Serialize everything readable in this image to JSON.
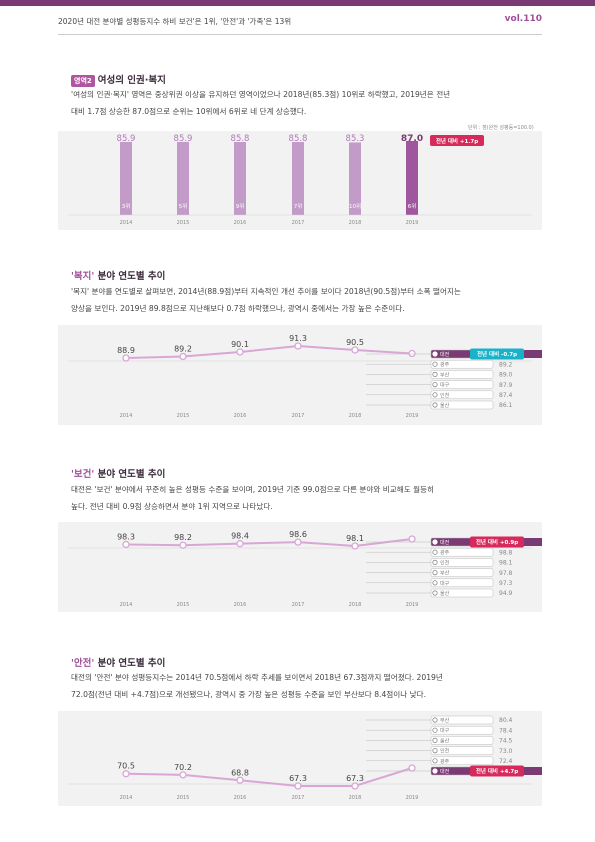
{
  "header": {
    "title": "2020년 대전 분야별 성평등지수 하비 보건'은 1위, '안전'과 '가족'은 13위",
    "vol": "vol.110"
  },
  "section1": {
    "badge": "영역2",
    "title": "여성의 인권·복지",
    "para_line1": "'여성의 인권·복지' 영역은 중상위권 이상을 유지하던 영역이었으나 2018년(85.3점) 10위로 하락했고, 2019년은 전년",
    "para_line2": "대비 1.7점 상승한 87.0점으로 순위는 10위에서 6위로 네 단계 상승했다.",
    "unit": "단위 : 점(완전 성평등=100.0)"
  },
  "section2": {
    "title_q": "'복지'",
    "title_rest": " 분야 연도별 추이",
    "para_line1": "'복지' 분야를 연도별로 살펴보면, 2014년(88.9점)부터 지속적인 개선 추이를 보이다 2018년(90.5점)부터 소폭 떨어지는",
    "para_line2": "양상을 보인다. 2019년 89.8점으로 지난해보다 0.7점 하락했으나, 광역시 중에서는 가장 높은 수준이다."
  },
  "section3": {
    "title_q": "'보건'",
    "title_rest": " 분야 연도별 추이",
    "para_line1": "대전은 '보건' 분야에서 꾸준히 높은 성평등 수준을 보이며, 2019년 기준 99.0점으로 다른 분야와 비교해도 월등히",
    "para_line2": "높다. 전년 대비 0.9점 상승하면서 분야 1위 지역으로 나타났다."
  },
  "section4": {
    "title_q": "'안전'",
    "title_rest": " 분야 연도별 추이",
    "para_line1": "대전의 '안전' 분야 성평등지수는 2014년 70.5점에서 하락 추세를 보이면서 2018년 67.3점까지 떨어졌다. 2019년",
    "para_line2": "72.0점(전년 대비 +4.7점)으로 개선됐으나, 광역시 중 가장 높은 성평등 수준을 보인 부산보다 8.4점이나 낮다."
  },
  "chart_data": [
    {
      "type": "bar",
      "categories": [
        "2014",
        "2015",
        "2016",
        "2017",
        "2018",
        "2019"
      ],
      "values": [
        85.9,
        85.9,
        85.8,
        85.8,
        85.3,
        87.0
      ],
      "value_labels": [
        "85.9",
        "85.9",
        "85.8",
        "85.8",
        "85.3",
        "87.0"
      ],
      "rank_labels": [
        "3위",
        "5위",
        "9위",
        "7위",
        "10위",
        "6위"
      ],
      "change_label": "전년 대비 +1.7p",
      "colors": {
        "bar": "#c39bc8",
        "bar_last": "#a0569e",
        "label": "#b07aba",
        "label_last": "#7a3a74",
        "badge": "#d62a5c"
      }
    },
    {
      "type": "line",
      "x": [
        "2014",
        "2015",
        "2016",
        "2017",
        "2018",
        "2019"
      ],
      "values": [
        88.9,
        89.2,
        90.1,
        91.3,
        90.5,
        89.8
      ],
      "value_labels": [
        "88.9",
        "89.2",
        "90.1",
        "91.3",
        "90.5",
        "89.8"
      ],
      "regions": [
        {
          "name": "대전",
          "value": "89.8",
          "highlight": true
        },
        {
          "name": "광주",
          "value": "89.2"
        },
        {
          "name": "부산",
          "value": "89.0"
        },
        {
          "name": "대구",
          "value": "87.9"
        },
        {
          "name": "인천",
          "value": "87.4"
        },
        {
          "name": "울산",
          "value": "86.1"
        }
      ],
      "change_label": "전년 대비 -0.7p",
      "colors": {
        "line": "#d9a6d6",
        "badge": "#19b3c9"
      }
    },
    {
      "type": "line",
      "x": [
        "2014",
        "2015",
        "2016",
        "2017",
        "2018",
        "2019"
      ],
      "values": [
        98.3,
        98.2,
        98.4,
        98.6,
        98.1,
        99.0
      ],
      "value_labels": [
        "98.3",
        "98.2",
        "98.4",
        "98.6",
        "98.1",
        "99.0"
      ],
      "regions": [
        {
          "name": "대전",
          "value": "99.0",
          "highlight": true
        },
        {
          "name": "광주",
          "value": "98.8"
        },
        {
          "name": "인천",
          "value": "98.1"
        },
        {
          "name": "부산",
          "value": "97.8"
        },
        {
          "name": "대구",
          "value": "97.3"
        },
        {
          "name": "울산",
          "value": "94.9"
        }
      ],
      "change_label": "전년 대비 +0.9p",
      "colors": {
        "line": "#d9a6d6",
        "badge": "#d62a5c"
      }
    },
    {
      "type": "line",
      "x": [
        "2014",
        "2015",
        "2016",
        "2017",
        "2018",
        "2019"
      ],
      "values": [
        70.5,
        70.2,
        68.8,
        67.3,
        67.3,
        72.0
      ],
      "value_labels": [
        "70.5",
        "70.2",
        "68.8",
        "67.3",
        "67.3",
        "72.0"
      ],
      "regions": [
        {
          "name": "부산",
          "value": "80.4"
        },
        {
          "name": "대구",
          "value": "78.4"
        },
        {
          "name": "울산",
          "value": "74.5"
        },
        {
          "name": "인천",
          "value": "73.0"
        },
        {
          "name": "광주",
          "value": "72.4"
        },
        {
          "name": "대전",
          "value": "72.0",
          "highlight": true
        }
      ],
      "change_label": "전년 대비 +4.7p",
      "colors": {
        "line": "#d9a6d6",
        "badge": "#d62a5c"
      }
    }
  ]
}
